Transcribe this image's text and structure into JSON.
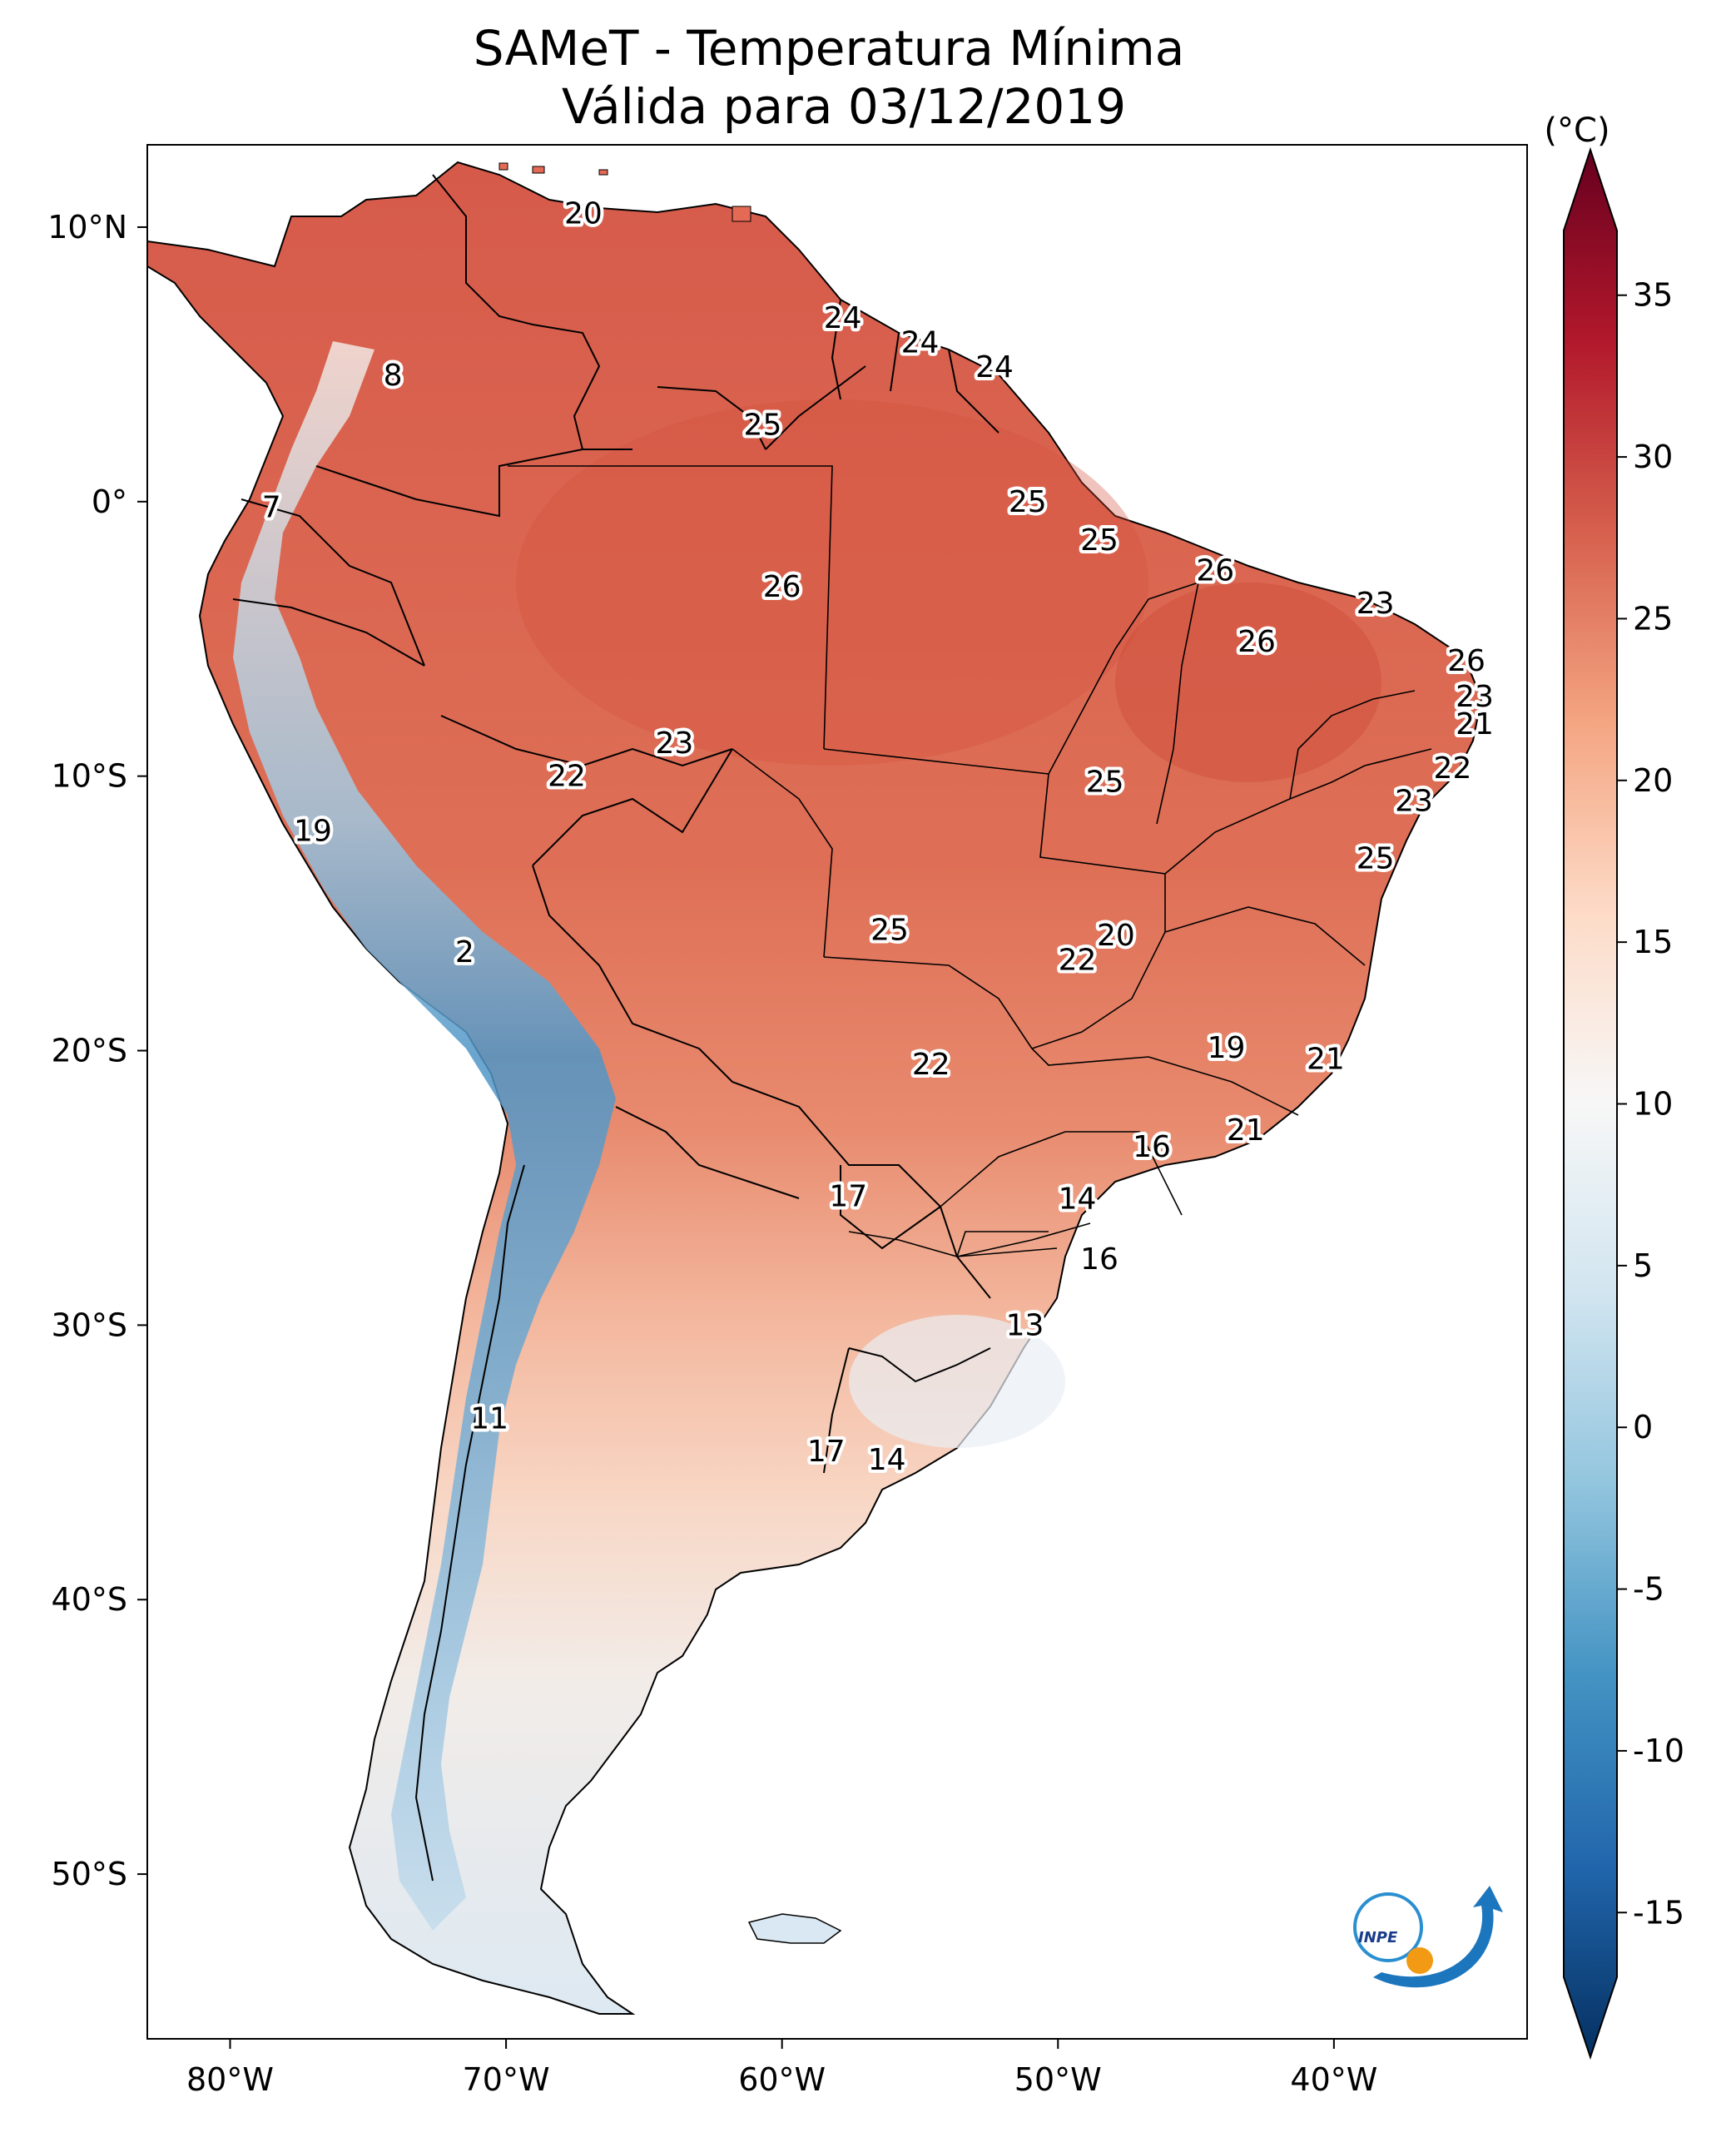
{
  "title": {
    "line1": "SAMeT - Temperatura Mínima",
    "line2": "Válida para 03/12/2019"
  },
  "map": {
    "extent": {
      "lon": [
        -83,
        -33
      ],
      "lat": [
        -56,
        13
      ]
    },
    "lon_ticks": [
      {
        "value": -80,
        "label": "80°W"
      },
      {
        "value": -70,
        "label": "70°W"
      },
      {
        "value": -60,
        "label": "60°W"
      },
      {
        "value": -50,
        "label": "50°W"
      },
      {
        "value": -40,
        "label": "40°W"
      }
    ],
    "lat_ticks": [
      {
        "value": 10,
        "label": "10°N"
      },
      {
        "value": 0,
        "label": "0°"
      },
      {
        "value": -10,
        "label": "10°S"
      },
      {
        "value": -20,
        "label": "20°S"
      },
      {
        "value": -30,
        "label": "30°S"
      },
      {
        "value": -40,
        "label": "40°S"
      },
      {
        "value": -50,
        "label": "50°S"
      }
    ],
    "city_values": [
      {
        "lon": -67.2,
        "lat": 10.5,
        "value": "20"
      },
      {
        "lon": -57.8,
        "lat": 6.7,
        "value": "24"
      },
      {
        "lon": -55.0,
        "lat": 5.8,
        "value": "24"
      },
      {
        "lon": -52.3,
        "lat": 4.9,
        "value": "24"
      },
      {
        "lon": -74.1,
        "lat": 4.6,
        "value": "8"
      },
      {
        "lon": -60.7,
        "lat": 2.8,
        "value": "25"
      },
      {
        "lon": -78.5,
        "lat": -0.2,
        "value": "7"
      },
      {
        "lon": -51.1,
        "lat": 0.0,
        "value": "25"
      },
      {
        "lon": -48.5,
        "lat": -1.4,
        "value": "25"
      },
      {
        "lon": -44.3,
        "lat": -2.5,
        "value": "26"
      },
      {
        "lon": -60.0,
        "lat": -3.1,
        "value": "26"
      },
      {
        "lon": -38.5,
        "lat": -3.7,
        "value": "23"
      },
      {
        "lon": -42.8,
        "lat": -5.1,
        "value": "26"
      },
      {
        "lon": -35.2,
        "lat": -5.8,
        "value": "26"
      },
      {
        "lon": -34.9,
        "lat": -7.1,
        "value": "23"
      },
      {
        "lon": -34.9,
        "lat": -8.1,
        "value": "21"
      },
      {
        "lon": -63.9,
        "lat": -8.8,
        "value": "23"
      },
      {
        "lon": -35.7,
        "lat": -9.7,
        "value": "22"
      },
      {
        "lon": -67.8,
        "lat": -10.0,
        "value": "22"
      },
      {
        "lon": -48.3,
        "lat": -10.2,
        "value": "25"
      },
      {
        "lon": -37.1,
        "lat": -10.9,
        "value": "23"
      },
      {
        "lon": -77.0,
        "lat": -12.0,
        "value": "19"
      },
      {
        "lon": -38.5,
        "lat": -13.0,
        "value": "25"
      },
      {
        "lon": -56.1,
        "lat": -15.6,
        "value": "25"
      },
      {
        "lon": -47.9,
        "lat": -15.8,
        "value": "20"
      },
      {
        "lon": -49.3,
        "lat": -16.7,
        "value": "22"
      },
      {
        "lon": -71.5,
        "lat": -16.4,
        "value": "2"
      },
      {
        "lon": -43.9,
        "lat": -19.9,
        "value": "19"
      },
      {
        "lon": -40.3,
        "lat": -20.3,
        "value": "21"
      },
      {
        "lon": -54.6,
        "lat": -20.5,
        "value": "22"
      },
      {
        "lon": -43.2,
        "lat": -22.9,
        "value": "21"
      },
      {
        "lon": -46.6,
        "lat": -23.5,
        "value": "16"
      },
      {
        "lon": -57.6,
        "lat": -25.3,
        "value": "17"
      },
      {
        "lon": -49.3,
        "lat": -25.4,
        "value": "14"
      },
      {
        "lon": -48.5,
        "lat": -27.6,
        "value": "16"
      },
      {
        "lon": -51.2,
        "lat": -30.0,
        "value": "13"
      },
      {
        "lon": -70.6,
        "lat": -33.4,
        "value": "11"
      },
      {
        "lon": -58.4,
        "lat": -34.6,
        "value": "17"
      },
      {
        "lon": -56.2,
        "lat": -34.9,
        "value": "14"
      }
    ]
  },
  "colorbar": {
    "unit": "(°C)",
    "min": -17,
    "max": 37,
    "ticks": [
      {
        "value": 35,
        "label": "35"
      },
      {
        "value": 30,
        "label": "30"
      },
      {
        "value": 25,
        "label": "25"
      },
      {
        "value": 20,
        "label": "20"
      },
      {
        "value": 15,
        "label": "15"
      },
      {
        "value": 10,
        "label": "10"
      },
      {
        "value": 5,
        "label": "5"
      },
      {
        "value": 0,
        "label": "0"
      },
      {
        "value": -5,
        "label": "-5"
      },
      {
        "value": -10,
        "label": "-10"
      },
      {
        "value": -15,
        "label": "-15"
      }
    ],
    "colors": [
      "#053061",
      "#2166ac",
      "#4393c3",
      "#92c5de",
      "#d1e5f0",
      "#f7f7f7",
      "#fddbc7",
      "#f4a582",
      "#d6604d",
      "#b2182b",
      "#67001f"
    ]
  },
  "logo": {
    "text": "INPE"
  }
}
